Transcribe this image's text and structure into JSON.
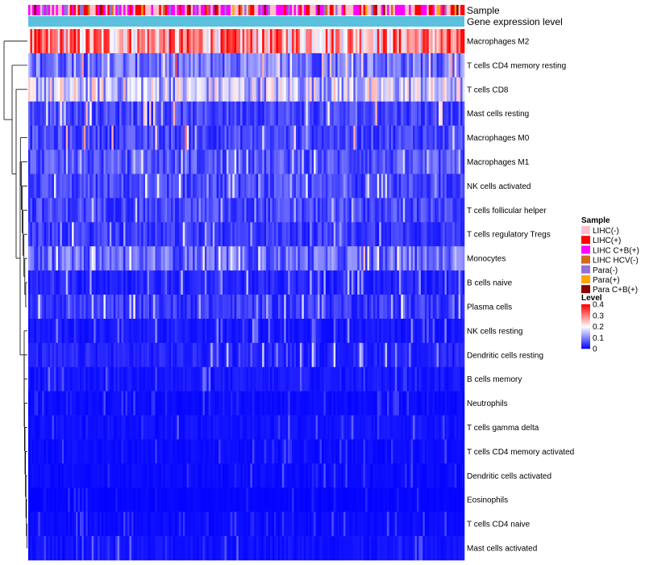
{
  "chart_data": {
    "type": "heatmap",
    "annotations": {
      "top": "Sample",
      "bottom": "Gene expression level"
    },
    "rows": [
      {
        "label": "Macrophages M2",
        "mean": 0.27,
        "var": 0.1,
        "bias": "warm"
      },
      {
        "label": "T cells CD4 memory resting",
        "mean": 0.1,
        "var": 0.06,
        "bias": "cool"
      },
      {
        "label": "T cells CD8",
        "mean": 0.15,
        "var": 0.08,
        "bias": "warm"
      },
      {
        "label": "Mast cells resting",
        "mean": 0.06,
        "var": 0.06,
        "bias": "cool"
      },
      {
        "label": "Macrophages M0",
        "mean": 0.06,
        "var": 0.07,
        "bias": "cool"
      },
      {
        "label": "Macrophages M1",
        "mean": 0.07,
        "var": 0.03,
        "bias": "cool"
      },
      {
        "label": "NK cells activated",
        "mean": 0.06,
        "var": 0.04,
        "bias": "cool"
      },
      {
        "label": "T cells follicular helper",
        "mean": 0.06,
        "var": 0.04,
        "bias": "cool"
      },
      {
        "label": "T cells regulatory  Tregs",
        "mean": 0.05,
        "var": 0.04,
        "bias": "cool"
      },
      {
        "label": "Monocytes",
        "mean": 0.09,
        "var": 0.04,
        "bias": "cool"
      },
      {
        "label": "B cells naive",
        "mean": 0.03,
        "var": 0.04,
        "bias": "cool"
      },
      {
        "label": "Plasma cells",
        "mean": 0.05,
        "var": 0.04,
        "bias": "cool"
      },
      {
        "label": "NK cells resting",
        "mean": 0.02,
        "var": 0.03,
        "bias": "cool"
      },
      {
        "label": "Dendritic cells resting",
        "mean": 0.03,
        "var": 0.04,
        "bias": "cool"
      },
      {
        "label": "B cells memory",
        "mean": 0.02,
        "var": 0.02,
        "bias": "cool"
      },
      {
        "label": "Neutrophils",
        "mean": 0.01,
        "var": 0.015,
        "bias": "cool"
      },
      {
        "label": "T cells gamma delta",
        "mean": 0.015,
        "var": 0.02,
        "bias": "cool"
      },
      {
        "label": "T cells CD4 memory activated",
        "mean": 0.01,
        "var": 0.015,
        "bias": "cool"
      },
      {
        "label": "Dendritic cells activated",
        "mean": 0.01,
        "var": 0.015,
        "bias": "cool"
      },
      {
        "label": "Eosinophils",
        "mean": 0.005,
        "var": 0.01,
        "bias": "cool"
      },
      {
        "label": "T cells CD4 naive",
        "mean": 0.01,
        "var": 0.015,
        "bias": "cool"
      },
      {
        "label": "Mast cells activated",
        "mean": 0.015,
        "var": 0.02,
        "bias": "cool"
      }
    ],
    "n_columns": 220,
    "legend": {
      "sample": {
        "title": "Sample",
        "items": [
          {
            "label": "LIHC(-)",
            "color": "#ffc0cb"
          },
          {
            "label": "LIHC(+)",
            "color": "#ff0000"
          },
          {
            "label": "LIHC C+B(+)",
            "color": "#ff00ff"
          },
          {
            "label": "LIHC HCV(-)",
            "color": "#d2691e"
          },
          {
            "label": "Para(-)",
            "color": "#9370db"
          },
          {
            "label": "Para(+)",
            "color": "#ffa500"
          },
          {
            "label": "Para C+B(+)",
            "color": "#8b0000"
          }
        ]
      },
      "level": {
        "title": "Level",
        "ticks": [
          "0.4",
          "0.3",
          "0.2",
          "0.1",
          "0"
        ],
        "tick_values": [
          0.4,
          0.3,
          0.2,
          0.1,
          0
        ],
        "range": [
          0,
          0.4
        ],
        "colors": [
          "#0000ff",
          "#ffffff",
          "#ff0000"
        ]
      }
    },
    "annotation_bar_color": "#5bc0de"
  }
}
